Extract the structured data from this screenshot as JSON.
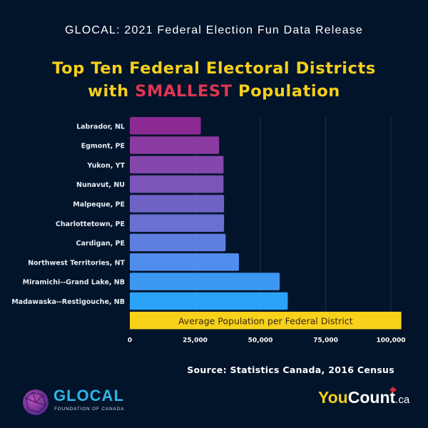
{
  "header": {
    "release_title": "GLOCAL: 2021 Federal Election Fun Data Release"
  },
  "title": {
    "line1": "Top Ten Federal Electoral Districts",
    "line2_prefix": "with ",
    "line2_highlight": "SMALLEST",
    "line2_suffix": " Population"
  },
  "colors": {
    "background": "#02142a",
    "title_yellow": "#f5cf1c",
    "highlight_red": "#e03651",
    "average_bar": "#f8d11a"
  },
  "chart_data": {
    "type": "bar",
    "orientation": "horizontal",
    "title": "Top Ten Federal Electoral Districts with SMALLEST Population",
    "xlabel": "",
    "ylabel": "",
    "xlim": [
      0,
      100000
    ],
    "grid": true,
    "x_ticks": [
      0,
      25000,
      50000,
      75000,
      100000
    ],
    "x_tick_labels": [
      "0",
      "25,000",
      "50,000",
      "75,000",
      "100,000"
    ],
    "categories": [
      "Labrador, NL",
      "Egmont, PE",
      "Yukon, YT",
      "Nunavut, NU",
      "Malpeque, PE",
      "Charlottetown, PE",
      "Cardigan, PE",
      "Northwest Territories, NT",
      "Miramichi--Grand Lake, NB",
      "Madawaska--Restigouche, NB"
    ],
    "values": [
      27200,
      34200,
      35900,
      35900,
      36100,
      36100,
      36700,
      41800,
      57400,
      60500
    ],
    "bar_colors": [
      "#8a2a92",
      "#8a3aa0",
      "#8447ab",
      "#7b55b8",
      "#6f63c7",
      "#6a6fd2",
      "#5f7fe0",
      "#4f8eec",
      "#3d98f2",
      "#2aa3f9"
    ],
    "average": {
      "label": "Average Population per Federal District",
      "value": 104000
    }
  },
  "footer": {
    "source": "Source: Statistics Canada, 2016 Census",
    "glocal_name": "GLOCAL",
    "glocal_sub": "FOUNDATION OF CANADA",
    "youcount_you": "You",
    "youcount_count": "Count",
    "youcount_ca": ".ca"
  }
}
